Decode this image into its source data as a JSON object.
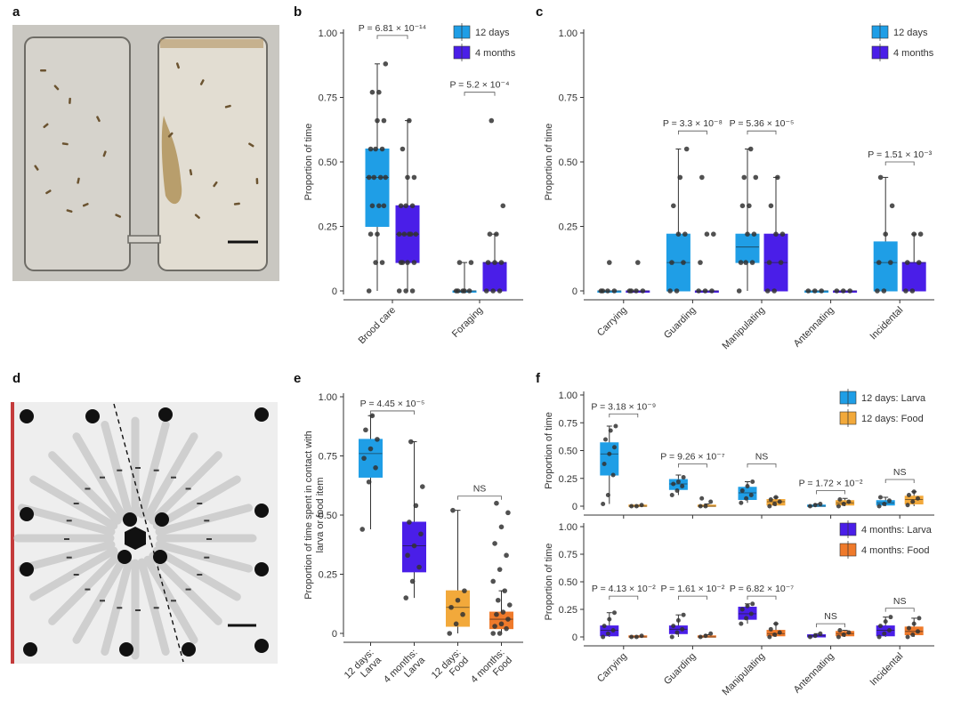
{
  "panel_labels": [
    "a",
    "b",
    "c",
    "d",
    "e",
    "f"
  ],
  "colors": {
    "d12": "#1f9ee6",
    "m4": "#4a1ee8",
    "food12": "#f2a93b",
    "food4": "#ef7a2b",
    "point": "#333333"
  },
  "chart_data": [
    {
      "panel": "b",
      "type": "box",
      "ylabel": "Proportion of time",
      "ylim": [
        0,
        1
      ],
      "yticks": [
        "0",
        "0.25",
        "0.50",
        "0.75",
        "1.00"
      ],
      "categories": [
        "Brood care",
        "Foraging"
      ],
      "legend": [
        "12 days",
        "4 months"
      ],
      "boxes": [
        {
          "cat": 0,
          "series": "12 days",
          "min": 0,
          "q1": 0.25,
          "median": 0.44,
          "q3": 0.55,
          "max": 0.88,
          "points": [
            0,
            0.11,
            0.11,
            0.22,
            0.22,
            0.33,
            0.33,
            0.33,
            0.44,
            0.44,
            0.44,
            0.44,
            0.55,
            0.55,
            0.55,
            0.66,
            0.66,
            0.77,
            0.77,
            0.88
          ]
        },
        {
          "cat": 0,
          "series": "4 months",
          "min": 0,
          "q1": 0.11,
          "median": 0.22,
          "q3": 0.33,
          "max": 0.66,
          "points": [
            0,
            0,
            0,
            0.11,
            0.11,
            0.11,
            0.11,
            0.22,
            0.22,
            0.22,
            0.22,
            0.22,
            0.33,
            0.33,
            0.33,
            0.44,
            0.44,
            0.55,
            0.66
          ]
        },
        {
          "cat": 1,
          "series": "12 days",
          "min": 0,
          "q1": 0,
          "median": 0,
          "q3": 0,
          "max": 0.11,
          "points": [
            0,
            0,
            0,
            0,
            0,
            0.11,
            0.11
          ]
        },
        {
          "cat": 1,
          "series": "4 months",
          "min": 0,
          "q1": 0,
          "median": 0.11,
          "q3": 0.11,
          "max": 0.22,
          "points": [
            0,
            0,
            0,
            0.11,
            0.11,
            0.11,
            0.22,
            0.22,
            0.33,
            0.66
          ]
        }
      ],
      "annotations": [
        {
          "cat": 0,
          "y": 0.99,
          "text": "P = 6.81 × 10⁻¹⁴"
        },
        {
          "cat": 1,
          "y": 0.77,
          "text": "P = 5.2 × 10⁻⁴"
        }
      ]
    },
    {
      "panel": "c",
      "type": "box",
      "ylabel": "Proportion of time",
      "ylim": [
        0,
        1
      ],
      "yticks": [
        "0",
        "0.25",
        "0.50",
        "0.75",
        "1.00"
      ],
      "categories": [
        "Carrying",
        "Guarding",
        "Manipulating",
        "Antennating",
        "Incidental"
      ],
      "legend": [
        "12 days",
        "4 months"
      ],
      "boxes": [
        {
          "cat": 0,
          "series": "12 days",
          "min": 0,
          "q1": 0,
          "median": 0,
          "q3": 0,
          "max": 0,
          "points": [
            0,
            0,
            0,
            0,
            0.11
          ]
        },
        {
          "cat": 0,
          "series": "4 months",
          "min": 0,
          "q1": 0,
          "median": 0,
          "q3": 0,
          "max": 0,
          "points": [
            0,
            0,
            0,
            0,
            0.11
          ]
        },
        {
          "cat": 1,
          "series": "12 days",
          "min": 0,
          "q1": 0,
          "median": 0.11,
          "q3": 0.22,
          "max": 0.55,
          "points": [
            0,
            0,
            0.11,
            0.11,
            0.22,
            0.22,
            0.33,
            0.44,
            0.55
          ]
        },
        {
          "cat": 1,
          "series": "4 months",
          "min": 0,
          "q1": 0,
          "median": 0,
          "q3": 0,
          "max": 0,
          "points": [
            0,
            0,
            0,
            0.11,
            0.22,
            0.22,
            0.44
          ]
        },
        {
          "cat": 2,
          "series": "12 days",
          "min": 0,
          "q1": 0.11,
          "median": 0.17,
          "q3": 0.22,
          "max": 0.55,
          "points": [
            0,
            0.11,
            0.11,
            0.11,
            0.22,
            0.22,
            0.33,
            0.33,
            0.44,
            0.44,
            0.55
          ]
        },
        {
          "cat": 2,
          "series": "4 months",
          "min": 0,
          "q1": 0,
          "median": 0.11,
          "q3": 0.22,
          "max": 0.44,
          "points": [
            0,
            0,
            0.11,
            0.11,
            0.22,
            0.22,
            0.33,
            0.44
          ]
        },
        {
          "cat": 3,
          "series": "12 days",
          "min": 0,
          "q1": 0,
          "median": 0,
          "q3": 0,
          "max": 0,
          "points": [
            0,
            0,
            0
          ]
        },
        {
          "cat": 3,
          "series": "4 months",
          "min": 0,
          "q1": 0,
          "median": 0,
          "q3": 0,
          "max": 0,
          "points": [
            0,
            0,
            0
          ]
        },
        {
          "cat": 4,
          "series": "12 days",
          "min": 0,
          "q1": 0,
          "median": 0.11,
          "q3": 0.19,
          "max": 0.44,
          "points": [
            0,
            0,
            0.11,
            0.11,
            0.22,
            0.33,
            0.44
          ]
        },
        {
          "cat": 4,
          "series": "4 months",
          "min": 0,
          "q1": 0,
          "median": 0.11,
          "q3": 0.11,
          "max": 0.22,
          "points": [
            0,
            0,
            0.11,
            0.11,
            0.22,
            0.22
          ]
        }
      ],
      "annotations": [
        {
          "cat": 1,
          "y": 0.62,
          "text": "P = 3.3 × 10⁻⁸"
        },
        {
          "cat": 2,
          "y": 0.62,
          "text": "P = 5.36 × 10⁻⁵"
        },
        {
          "cat": 4,
          "y": 0.5,
          "text": "P = 1.51 × 10⁻³"
        }
      ]
    },
    {
      "panel": "e",
      "type": "box",
      "ylabel": "Proportion of time spent in contact with larva or food item",
      "ylim": [
        0,
        1
      ],
      "yticks": [
        "0",
        "0.25",
        "0.50",
        "0.75",
        "1.00"
      ],
      "categories": [
        "12 days: Larva",
        "4 months: Larva",
        "12 days: Food",
        "4 months: Food"
      ],
      "boxes": [
        {
          "cat": 0,
          "series": "12 days: Larva",
          "min": 0.44,
          "q1": 0.66,
          "median": 0.76,
          "q3": 0.82,
          "max": 0.92,
          "points": [
            0.44,
            0.64,
            0.7,
            0.74,
            0.78,
            0.82,
            0.86,
            0.92
          ]
        },
        {
          "cat": 1,
          "series": "4 months: Larva",
          "min": 0.15,
          "q1": 0.26,
          "median": 0.37,
          "q3": 0.47,
          "max": 0.81,
          "points": [
            0.15,
            0.22,
            0.28,
            0.33,
            0.37,
            0.42,
            0.47,
            0.54,
            0.62,
            0.81
          ]
        },
        {
          "cat": 2,
          "series": "12 days: Food",
          "min": 0,
          "q1": 0.03,
          "median": 0.11,
          "q3": 0.18,
          "max": 0.52,
          "points": [
            0,
            0.04,
            0.08,
            0.11,
            0.14,
            0.18,
            0.52
          ]
        },
        {
          "cat": 3,
          "series": "4 months: Food",
          "min": 0,
          "q1": 0.02,
          "median": 0.06,
          "q3": 0.09,
          "max": 0.18,
          "points": [
            0,
            0,
            0.02,
            0.03,
            0.04,
            0.06,
            0.08,
            0.09,
            0.12,
            0.14,
            0.18,
            0.22,
            0.27,
            0.33,
            0.38,
            0.45,
            0.51,
            0.55
          ]
        }
      ],
      "annotations": [
        {
          "cats": [
            0,
            1
          ],
          "y": 0.94,
          "text": "P = 4.45 × 10⁻⁵"
        },
        {
          "cats": [
            2,
            3
          ],
          "y": 0.58,
          "text": "NS"
        }
      ]
    },
    {
      "panel": "f-top",
      "type": "box",
      "ylabel": "Proportion of time",
      "ylim": [
        0,
        1
      ],
      "yticks": [
        "0",
        "0.25",
        "0.50",
        "0.75",
        "1.00"
      ],
      "categories": [
        "Carrying",
        "Guarding",
        "Manipulating",
        "Antennating",
        "Incidental"
      ],
      "legend": [
        "12 days: Larva",
        "12 days: Food"
      ],
      "boxes": [
        {
          "cat": 0,
          "series": "12 days: Larva",
          "min": 0.02,
          "q1": 0.28,
          "median": 0.47,
          "q3": 0.57,
          "max": 0.72,
          "points": [
            0.02,
            0.1,
            0.28,
            0.38,
            0.47,
            0.53,
            0.6,
            0.68,
            0.72
          ]
        },
        {
          "cat": 0,
          "series": "12 days: Food",
          "min": 0,
          "q1": 0,
          "median": 0,
          "q3": 0.01,
          "max": 0.01,
          "points": [
            0,
            0,
            0.01
          ]
        },
        {
          "cat": 1,
          "series": "12 days: Larva",
          "min": 0.1,
          "q1": 0.15,
          "median": 0.2,
          "q3": 0.24,
          "max": 0.28,
          "points": [
            0.1,
            0.14,
            0.18,
            0.2,
            0.22,
            0.26
          ]
        },
        {
          "cat": 1,
          "series": "12 days: Food",
          "min": 0,
          "q1": 0,
          "median": 0,
          "q3": 0.01,
          "max": 0.02,
          "points": [
            0,
            0,
            0.04,
            0.07
          ]
        },
        {
          "cat": 2,
          "series": "12 days: Larva",
          "min": 0.03,
          "q1": 0.06,
          "median": 0.12,
          "q3": 0.17,
          "max": 0.22,
          "points": [
            0.03,
            0.07,
            0.1,
            0.14,
            0.18,
            0.22
          ]
        },
        {
          "cat": 2,
          "series": "12 days: Food",
          "min": 0,
          "q1": 0.01,
          "median": 0.04,
          "q3": 0.06,
          "max": 0.08,
          "points": [
            0,
            0.02,
            0.04,
            0.06,
            0.08
          ]
        },
        {
          "cat": 3,
          "series": "12 days: Larva",
          "min": 0,
          "q1": 0,
          "median": 0,
          "q3": 0.01,
          "max": 0.02,
          "points": [
            0,
            0.01,
            0.02
          ]
        },
        {
          "cat": 3,
          "series": "12 days: Food",
          "min": 0,
          "q1": 0.01,
          "median": 0.03,
          "q3": 0.05,
          "max": 0.07,
          "points": [
            0,
            0.02,
            0.04,
            0.06
          ]
        },
        {
          "cat": 4,
          "series": "12 days: Larva",
          "min": 0,
          "q1": 0.01,
          "median": 0.03,
          "q3": 0.05,
          "max": 0.08,
          "points": [
            0,
            0.02,
            0.05,
            0.08
          ]
        },
        {
          "cat": 4,
          "series": "12 days: Food",
          "min": 0,
          "q1": 0.02,
          "median": 0.06,
          "q3": 0.09,
          "max": 0.13,
          "points": [
            0.01,
            0.04,
            0.07,
            0.1,
            0.13
          ]
        }
      ],
      "annotations": [
        {
          "cat": 0,
          "y": 0.83,
          "text": "P = 3.18 × 10⁻⁹"
        },
        {
          "cat": 1,
          "y": 0.38,
          "text": "P = 9.26 × 10⁻⁷"
        },
        {
          "cat": 2,
          "y": 0.38,
          "text": "NS"
        },
        {
          "cat": 3,
          "y": 0.14,
          "text": "P = 1.72 × 10⁻²"
        },
        {
          "cat": 4,
          "y": 0.24,
          "text": "NS"
        }
      ]
    },
    {
      "panel": "f-bottom",
      "type": "box",
      "ylabel": "Proportion of time",
      "ylim": [
        0,
        1
      ],
      "yticks": [
        "0",
        "0.25",
        "0.50",
        "0.75",
        "1.00"
      ],
      "categories": [
        "Carrying",
        "Guarding",
        "Manipulating",
        "Antennating",
        "Incidental"
      ],
      "legend": [
        "4 months: Larva",
        "4 months: Food"
      ],
      "boxes": [
        {
          "cat": 0,
          "series": "4 months: Larva",
          "min": 0,
          "q1": 0.01,
          "median": 0.06,
          "q3": 0.1,
          "max": 0.22,
          "points": [
            0,
            0.03,
            0.06,
            0.1,
            0.16,
            0.22
          ]
        },
        {
          "cat": 0,
          "series": "4 months: Food",
          "min": 0,
          "q1": 0,
          "median": 0,
          "q3": 0.01,
          "max": 0.01,
          "points": [
            0,
            0,
            0.01
          ]
        },
        {
          "cat": 1,
          "series": "4 months: Larva",
          "min": 0,
          "q1": 0.03,
          "median": 0.07,
          "q3": 0.1,
          "max": 0.2,
          "points": [
            0,
            0.04,
            0.07,
            0.1,
            0.15,
            0.2
          ]
        },
        {
          "cat": 1,
          "series": "4 months: Food",
          "min": 0,
          "q1": 0,
          "median": 0,
          "q3": 0.01,
          "max": 0.02,
          "points": [
            0,
            0.01,
            0.03
          ]
        },
        {
          "cat": 2,
          "series": "4 months: Larva",
          "min": 0.12,
          "q1": 0.16,
          "median": 0.21,
          "q3": 0.27,
          "max": 0.3,
          "points": [
            0.12,
            0.17,
            0.21,
            0.25,
            0.28,
            0.3
          ]
        },
        {
          "cat": 2,
          "series": "4 months: Food",
          "min": 0,
          "q1": 0.01,
          "median": 0.03,
          "q3": 0.06,
          "max": 0.12,
          "points": [
            0,
            0.02,
            0.04,
            0.07,
            0.12
          ]
        },
        {
          "cat": 3,
          "series": "4 months: Larva",
          "min": 0,
          "q1": 0,
          "median": 0.01,
          "q3": 0.02,
          "max": 0.03,
          "points": [
            0,
            0.01,
            0.03
          ]
        },
        {
          "cat": 3,
          "series": "4 months: Food",
          "min": 0,
          "q1": 0.01,
          "median": 0.03,
          "q3": 0.05,
          "max": 0.06,
          "points": [
            0,
            0.02,
            0.04,
            0.06
          ]
        },
        {
          "cat": 4,
          "series": "4 months: Larva",
          "min": 0,
          "q1": 0.01,
          "median": 0.06,
          "q3": 0.1,
          "max": 0.18,
          "points": [
            0,
            0.03,
            0.06,
            0.1,
            0.14,
            0.18
          ]
        },
        {
          "cat": 4,
          "series": "4 months: Food",
          "min": 0,
          "q1": 0.02,
          "median": 0.05,
          "q3": 0.09,
          "max": 0.17,
          "points": [
            0,
            0.02,
            0.05,
            0.08,
            0.12,
            0.17
          ]
        }
      ],
      "annotations": [
        {
          "cat": 0,
          "y": 0.37,
          "text": "P = 4.13 × 10⁻²"
        },
        {
          "cat": 1,
          "y": 0.37,
          "text": "P = 1.61 × 10⁻²"
        },
        {
          "cat": 2,
          "y": 0.37,
          "text": "P = 6.82 × 10⁻⁷"
        },
        {
          "cat": 3,
          "y": 0.12,
          "text": "NS"
        },
        {
          "cat": 4,
          "y": 0.26,
          "text": "NS"
        }
      ]
    }
  ]
}
